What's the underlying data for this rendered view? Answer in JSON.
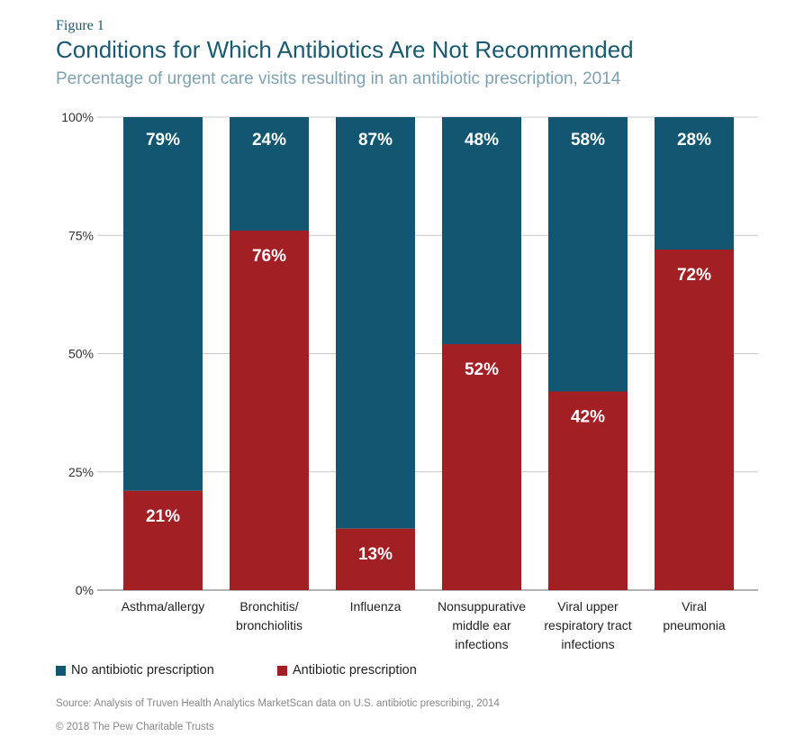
{
  "header": {
    "figure_label": "Figure 1",
    "title": "Conditions for Which Antibiotics Are Not Recommended",
    "subtitle": "Percentage of urgent care visits resulting in an antibiotic prescription, 2014"
  },
  "chart_data": {
    "type": "bar",
    "stacked": true,
    "categories": [
      [
        "Asthma/allergy"
      ],
      [
        "Bronchitis/",
        "bronchiolitis"
      ],
      [
        "Influenza"
      ],
      [
        "Nonsuppurative",
        "middle ear",
        "infections"
      ],
      [
        "Viral upper",
        "respiratory tract",
        "infections"
      ],
      [
        "Viral",
        "pneumonia"
      ]
    ],
    "series": [
      {
        "name": "Antibiotic prescription",
        "color": "#a21f24",
        "values": [
          21,
          76,
          13,
          52,
          42,
          72
        ],
        "labels": [
          "21%",
          "76%",
          "13%",
          "52%",
          "42%",
          "72%"
        ]
      },
      {
        "name": "No antibiotic prescription",
        "color": "#135671",
        "values": [
          79,
          24,
          87,
          48,
          58,
          28
        ],
        "labels": [
          "79%",
          "24%",
          "87%",
          "48%",
          "58%",
          "28%"
        ]
      }
    ],
    "ylim": [
      0,
      100
    ],
    "yticks": [
      0,
      25,
      50,
      75,
      100
    ],
    "ytick_labels": [
      "0%",
      "25%",
      "50%",
      "75%",
      "100%"
    ],
    "grid": true,
    "legend_position": "bottom-left"
  },
  "legend": {
    "items": [
      {
        "label": "No antibiotic prescription",
        "color": "#135671"
      },
      {
        "label": "Antibiotic prescription",
        "color": "#a21f24"
      }
    ]
  },
  "footer": {
    "source": "Source: Analysis of Truven Health Analytics MarketScan data on U.S. antibiotic prescribing, 2014",
    "copyright": "© 2018 The Pew Charitable Trusts"
  }
}
